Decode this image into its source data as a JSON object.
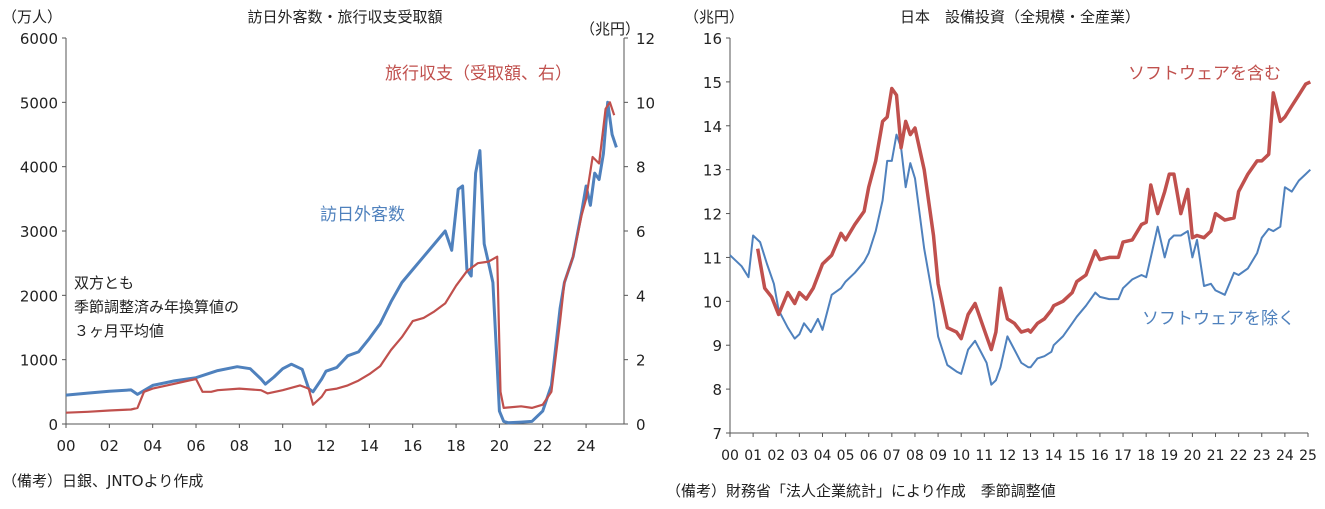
{
  "colors": {
    "red": "#c0504d",
    "blue": "#4f81bd",
    "axis": "#555555",
    "text": "#222222"
  },
  "chart_data": [
    {
      "type": "line",
      "title": "訪日外客数・旅行収支受取額",
      "left_unit": "（万人）",
      "right_unit": "（兆円）",
      "left_ylim": [
        0,
        6000
      ],
      "right_ylim": [
        0,
        12
      ],
      "left_ticks": [
        "0",
        "1000",
        "2000",
        "3000",
        "4000",
        "5000",
        "6000"
      ],
      "right_ticks": [
        "0",
        "2",
        "4",
        "6",
        "8",
        "10",
        "12"
      ],
      "x_range": [
        2000,
        2025.75
      ],
      "x_ticks": [
        "00",
        "02",
        "04",
        "06",
        "08",
        "10",
        "12",
        "14",
        "16",
        "18",
        "20",
        "22",
        "24"
      ],
      "note_lines": [
        "双方とも",
        "季節調整済み年換算値の",
        "３ヶ月平均値"
      ],
      "source": "（備考）日銀、JNTOより作成",
      "series": [
        {
          "name": "訪日外客数",
          "axis": "left",
          "color": "blue",
          "x": [
            2000,
            2001,
            2002,
            2003,
            2003.3,
            2003.6,
            2004,
            2005,
            2006,
            2007,
            2007.9,
            2008.5,
            2009.0,
            2009.2,
            2009.6,
            2010,
            2010.4,
            2010.9,
            2011.2,
            2011.4,
            2011.8,
            2012,
            2012.5,
            2013,
            2013.5,
            2014,
            2014.5,
            2015,
            2015.5,
            2016,
            2016.5,
            2017,
            2017.5,
            2017.8,
            2018.1,
            2018.3,
            2018.5,
            2018.7,
            2018.9,
            2019.1,
            2019.3,
            2019.5,
            2019.7,
            2019.9,
            2020.0,
            2020.2,
            2020.4,
            2021,
            2021.5,
            2022,
            2022.4,
            2022.8,
            2023,
            2023.4,
            2023.8,
            2024,
            2024.2,
            2024.4,
            2024.6,
            2024.8,
            2025.0,
            2025.2,
            2025.4
          ],
          "values": [
            450,
            480,
            510,
            530,
            460,
            520,
            600,
            670,
            720,
            830,
            890,
            860,
            700,
            620,
            730,
            860,
            930,
            850,
            550,
            500,
            700,
            820,
            880,
            1060,
            1120,
            1330,
            1560,
            1900,
            2200,
            2400,
            2600,
            2800,
            3000,
            2700,
            3650,
            3700,
            2400,
            2300,
            3900,
            4250,
            2800,
            2500,
            2200,
            900,
            200,
            40,
            20,
            30,
            40,
            200,
            600,
            1800,
            2200,
            2600,
            3300,
            3700,
            3400,
            3900,
            3800,
            4200,
            5000,
            4500,
            4300
          ]
        },
        {
          "name": "旅行収支（受取額、右）",
          "axis": "right",
          "color": "red",
          "x": [
            2000,
            2001,
            2002,
            2003,
            2003.3,
            2003.6,
            2004,
            2005,
            2006,
            2006.3,
            2006.7,
            2007,
            2008,
            2009,
            2009.3,
            2010,
            2010.8,
            2011.2,
            2011.4,
            2011.8,
            2012,
            2012.5,
            2013,
            2013.5,
            2014,
            2014.5,
            2015,
            2015.5,
            2016,
            2016.5,
            2017,
            2017.5,
            2018,
            2018.5,
            2019,
            2019.5,
            2019.9,
            2020.05,
            2020.2,
            2021,
            2021.5,
            2022,
            2022.4,
            2022.8,
            2023,
            2023.4,
            2023.8,
            2024,
            2024.3,
            2024.6,
            2024.9,
            2025.1,
            2025.3
          ],
          "values": [
            0.35,
            0.38,
            0.42,
            0.45,
            0.5,
            1.0,
            1.1,
            1.25,
            1.4,
            1.0,
            1.0,
            1.05,
            1.1,
            1.05,
            0.95,
            1.05,
            1.2,
            1.1,
            0.6,
            0.85,
            1.05,
            1.1,
            1.2,
            1.35,
            1.55,
            1.8,
            2.3,
            2.7,
            3.2,
            3.3,
            3.5,
            3.75,
            4.3,
            4.75,
            5.0,
            5.05,
            5.2,
            1.0,
            0.5,
            0.55,
            0.5,
            0.6,
            1.0,
            3.2,
            4.4,
            5.2,
            6.5,
            7.0,
            8.3,
            8.1,
            9.8,
            10.0,
            9.6
          ]
        }
      ],
      "labels": {
        "visitors": "訪日外客数",
        "travel": "旅行収支（受取額、右）"
      }
    },
    {
      "type": "line",
      "title": "日本　設備投資（全規模・全産業）",
      "unit": "（兆円）",
      "ylim": [
        7,
        16
      ],
      "y_ticks": [
        "7",
        "8",
        "9",
        "10",
        "11",
        "12",
        "13",
        "14",
        "15",
        "16"
      ],
      "x_range": [
        2000,
        2025
      ],
      "x_ticks": [
        "00",
        "01",
        "02",
        "03",
        "04",
        "05",
        "06",
        "07",
        "08",
        "09",
        "10",
        "11",
        "12",
        "13",
        "14",
        "15",
        "16",
        "17",
        "18",
        "19",
        "20",
        "21",
        "22",
        "23",
        "24",
        "25"
      ],
      "source": "（備考）財務省「法人企業統計」により作成　季節調整値",
      "series": [
        {
          "name": "ソフトウェアを除く",
          "color": "blue",
          "x": [
            2000,
            2000.5,
            2000.8,
            2001,
            2001.3,
            2001.6,
            2001.9,
            2002.1,
            2002.5,
            2002.8,
            2003,
            2003.2,
            2003.5,
            2003.8,
            2004,
            2004.4,
            2004.8,
            2005,
            2005.4,
            2005.8,
            2006,
            2006.3,
            2006.6,
            2006.8,
            2007,
            2007.2,
            2007.4,
            2007.6,
            2007.8,
            2008,
            2008.4,
            2008.8,
            2009,
            2009.4,
            2009.8,
            2010,
            2010.3,
            2010.6,
            2010.9,
            2011.1,
            2011.3,
            2011.5,
            2011.7,
            2012,
            2012.3,
            2012.6,
            2012.9,
            2013,
            2013.3,
            2013.6,
            2013.9,
            2014,
            2014.4,
            2014.8,
            2015,
            2015.4,
            2015.8,
            2016,
            2016.4,
            2016.8,
            2017,
            2017.4,
            2017.8,
            2018,
            2018.2,
            2018.5,
            2018.8,
            2019,
            2019.2,
            2019.5,
            2019.8,
            2020,
            2020.2,
            2020.5,
            2020.8,
            2021,
            2021.4,
            2021.8,
            2022,
            2022.4,
            2022.8,
            2023,
            2023.3,
            2023.5,
            2023.8,
            2024,
            2024.3,
            2024.6,
            2024.9,
            2025.1
          ],
          "values": [
            11.05,
            10.8,
            10.55,
            11.5,
            11.35,
            10.85,
            10.4,
            9.8,
            9.4,
            9.15,
            9.25,
            9.5,
            9.3,
            9.6,
            9.35,
            10.15,
            10.3,
            10.45,
            10.65,
            10.9,
            11.1,
            11.6,
            12.3,
            13.2,
            13.2,
            13.8,
            13.5,
            12.6,
            13.15,
            12.8,
            11.2,
            10.0,
            9.2,
            8.55,
            8.4,
            8.35,
            8.9,
            9.1,
            8.8,
            8.6,
            8.1,
            8.2,
            8.5,
            9.2,
            8.9,
            8.6,
            8.5,
            8.5,
            8.7,
            8.75,
            8.85,
            9.0,
            9.2,
            9.5,
            9.65,
            9.9,
            10.2,
            10.1,
            10.05,
            10.05,
            10.3,
            10.5,
            10.6,
            10.55,
            11.0,
            11.7,
            11.0,
            11.4,
            11.5,
            11.5,
            11.6,
            11.0,
            11.4,
            10.35,
            10.4,
            10.25,
            10.15,
            10.65,
            10.6,
            10.75,
            11.1,
            11.45,
            11.65,
            11.6,
            11.7,
            12.6,
            12.5,
            12.75,
            12.9,
            13.0
          ]
        },
        {
          "name": "ソフトウェアを含む",
          "color": "red",
          "x": [
            2001.2,
            2001.5,
            2001.8,
            2002.1,
            2002.5,
            2002.8,
            2003,
            2003.3,
            2003.6,
            2004,
            2004.4,
            2004.8,
            2005,
            2005.4,
            2005.8,
            2006,
            2006.3,
            2006.6,
            2006.8,
            2007,
            2007.2,
            2007.4,
            2007.6,
            2007.8,
            2008,
            2008.4,
            2008.8,
            2009,
            2009.4,
            2009.8,
            2010,
            2010.3,
            2010.6,
            2010.9,
            2011.1,
            2011.3,
            2011.5,
            2011.7,
            2012,
            2012.3,
            2012.6,
            2012.9,
            2013,
            2013.3,
            2013.6,
            2013.9,
            2014,
            2014.4,
            2014.8,
            2015,
            2015.4,
            2015.8,
            2016,
            2016.4,
            2016.8,
            2017,
            2017.4,
            2017.8,
            2018,
            2018.2,
            2018.5,
            2018.8,
            2019,
            2019.2,
            2019.5,
            2019.8,
            2020,
            2020.2,
            2020.5,
            2020.8,
            2021,
            2021.4,
            2021.8,
            2022,
            2022.4,
            2022.8,
            2023,
            2023.3,
            2023.5,
            2023.8,
            2024,
            2024.3,
            2024.6,
            2024.9,
            2025.1
          ],
          "values": [
            11.2,
            10.3,
            10.1,
            9.7,
            10.2,
            9.95,
            10.2,
            10.05,
            10.3,
            10.85,
            11.05,
            11.55,
            11.4,
            11.75,
            12.05,
            12.6,
            13.2,
            14.1,
            14.2,
            14.85,
            14.7,
            13.5,
            14.1,
            13.8,
            13.95,
            13.0,
            11.5,
            10.4,
            9.4,
            9.3,
            9.15,
            9.7,
            9.95,
            9.5,
            9.2,
            8.9,
            9.3,
            10.3,
            9.6,
            9.5,
            9.3,
            9.35,
            9.3,
            9.5,
            9.6,
            9.8,
            9.9,
            10.0,
            10.2,
            10.45,
            10.6,
            11.15,
            10.95,
            11.0,
            11.0,
            11.35,
            11.4,
            11.75,
            11.8,
            12.65,
            12.0,
            12.5,
            12.9,
            12.9,
            12.0,
            12.55,
            11.45,
            11.5,
            11.45,
            11.6,
            12.0,
            11.85,
            11.9,
            12.5,
            12.9,
            13.2,
            13.2,
            13.35,
            14.75,
            14.1,
            14.2,
            14.45,
            14.7,
            14.95,
            15.0
          ]
        }
      ],
      "labels": {
        "with_software": "ソフトウェアを含む",
        "without_software": "ソフトウェアを除く"
      }
    }
  ]
}
